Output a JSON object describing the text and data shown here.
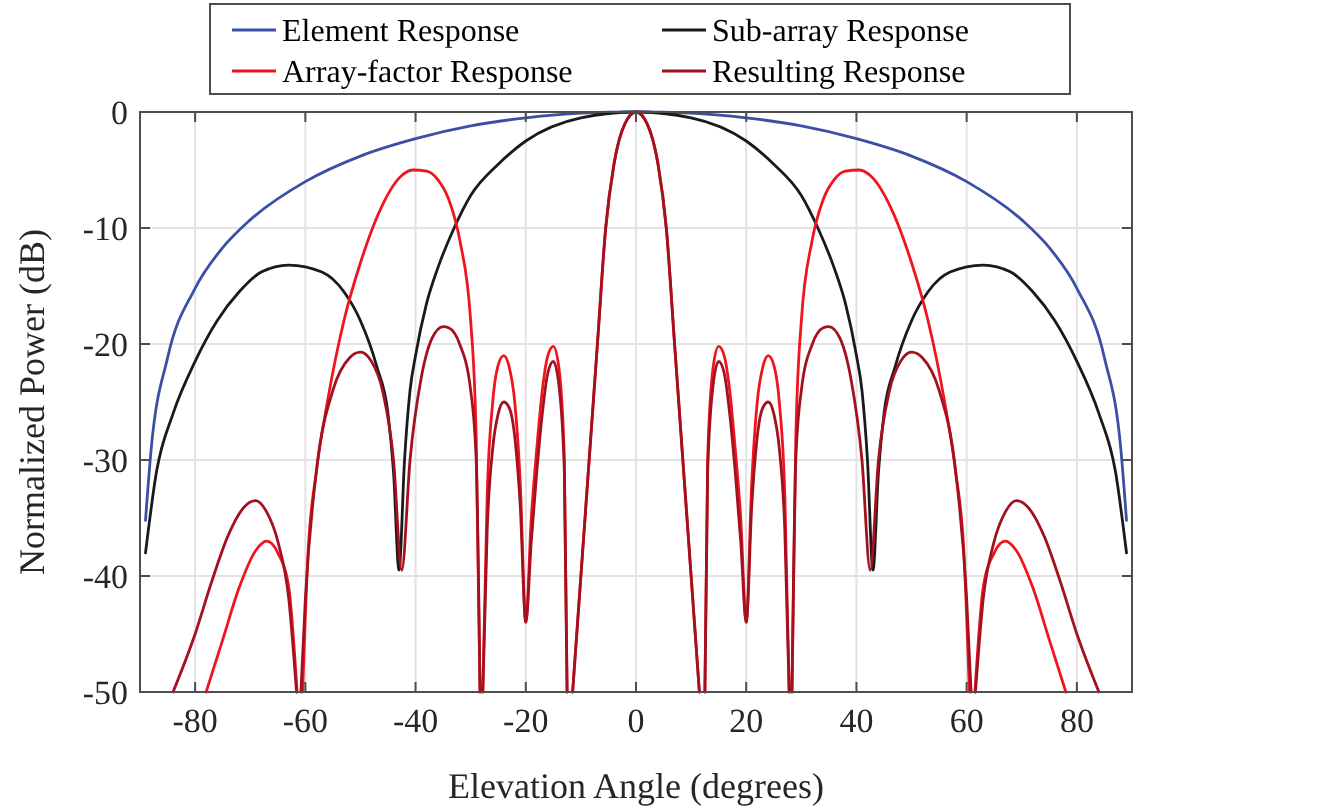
{
  "chart_data": {
    "type": "line",
    "xlabel": "Elevation Angle (degrees)",
    "ylabel": "Normalized Power (dB)",
    "xlim": [
      -90,
      90
    ],
    "xticks": [
      -80,
      -60,
      -40,
      -20,
      0,
      20,
      40,
      60,
      80
    ],
    "ylim": [
      -50,
      0
    ],
    "yticks": [
      -50,
      -40,
      -30,
      -20,
      -10,
      0
    ],
    "grid": true,
    "legend": "top",
    "line_style": "solid",
    "marker": "none",
    "series": [
      {
        "name": "Element Response",
        "color": "#3a4fa5",
        "x": [
          -89,
          -88,
          -85,
          -80,
          -75,
          -70,
          -60,
          -50,
          -40,
          -30,
          -20,
          -10,
          0,
          10,
          20,
          30,
          40,
          50,
          60,
          70,
          75,
          80,
          85,
          88,
          89
        ],
        "values": [
          -35.2,
          -29.2,
          -21.2,
          -15.2,
          -11.7,
          -9.3,
          -6,
          -3.8,
          -2.3,
          -1.2,
          -0.5,
          -0.1,
          0,
          -0.1,
          -0.5,
          -1.2,
          -2.3,
          -3.8,
          -6,
          -9.3,
          -11.7,
          -15.2,
          -21.2,
          -29.2,
          -35.2
        ]
      },
      {
        "name": "Sub-array Response",
        "color": "#1a1a1a",
        "x": [
          -89,
          -87,
          -84,
          -80,
          -76,
          -72,
          -68,
          -63,
          -57,
          -53,
          -50,
          -47,
          -45,
          -44,
          -43,
          -42,
          -41,
          -40,
          -38,
          -36,
          -33,
          -30,
          -25,
          -20,
          -10,
          0,
          10,
          20,
          25,
          30,
          33,
          36,
          38,
          40,
          41,
          42,
          43,
          44,
          45,
          47,
          50,
          53,
          57,
          63,
          68,
          72,
          76,
          80,
          84,
          87,
          89
        ],
        "values": [
          -38,
          -31,
          -26,
          -21.5,
          -18,
          -15.5,
          -13.8,
          -13.2,
          -13.8,
          -15.5,
          -18,
          -22,
          -26,
          -31,
          -39.5,
          -30,
          -24,
          -21,
          -16.5,
          -13.5,
          -10,
          -7.2,
          -4.5,
          -2.5,
          -0.5,
          0,
          -0.5,
          -2.5,
          -4.5,
          -7.2,
          -10,
          -13.5,
          -16.5,
          -21,
          -24,
          -30,
          -39.5,
          -31,
          -26,
          -22,
          -18,
          -15.5,
          -13.8,
          -13.2,
          -13.8,
          -15.5,
          -18,
          -21.5,
          -26,
          -31,
          -38
        ]
      },
      {
        "name": "Array-factor Response",
        "color": "#f0141e",
        "x": [
          -78,
          -75,
          -72,
          -69,
          -67,
          -65,
          -63,
          -61.5,
          -61,
          -60.5,
          -59.5,
          -58,
          -56,
          -53,
          -50,
          -46,
          -43,
          -40.5,
          -38,
          -36,
          -34,
          -32,
          -30,
          -29,
          -28.3,
          -28,
          -27.8,
          -27,
          -26,
          -25,
          -24,
          -23,
          -22,
          -21,
          -20,
          -19,
          -18,
          -17,
          -16,
          -15,
          -14,
          -13,
          -12.5,
          -12,
          -11.5,
          -10,
          -8.5,
          -7,
          -5.5,
          -4,
          -2,
          0,
          2,
          4,
          5.5,
          7,
          8.5,
          10,
          11.5,
          12,
          12.5,
          13,
          14,
          15,
          16,
          17,
          18,
          19,
          20,
          21,
          22,
          23,
          24,
          25,
          26,
          27,
          27.8,
          28,
          28.3,
          29,
          30,
          32,
          34,
          36,
          38,
          40.5,
          43,
          46,
          50,
          53,
          56,
          58,
          59.5,
          60.5,
          61,
          61.5,
          63,
          65,
          67,
          69,
          72,
          75,
          78
        ],
        "values": [
          -50,
          -45.5,
          -41,
          -37.8,
          -37,
          -38,
          -41,
          -50,
          null,
          -50,
          -38,
          -31,
          -25,
          -18,
          -13,
          -8,
          -5.7,
          -5,
          -5.1,
          -5.8,
          -7.5,
          -11,
          -18,
          -28,
          -50,
          null,
          -50,
          -33,
          -25,
          -21.8,
          -21,
          -22,
          -25,
          -32,
          -44,
          -35,
          -29,
          -24,
          -21,
          -20.2,
          -22,
          -30,
          -50,
          null,
          -50,
          -40,
          -30,
          -20,
          -10,
          -4.5,
          -1,
          0,
          -1,
          -4.5,
          -10,
          -20,
          -30,
          -40,
          -50,
          null,
          -50,
          -30,
          -22,
          -20.2,
          -21,
          -24,
          -29,
          -35,
          -44,
          -32,
          -25,
          -22,
          -21,
          -21.8,
          -25,
          -33,
          -50,
          null,
          -50,
          -28,
          -18,
          -11,
          -7.5,
          -5.8,
          -5.1,
          -5,
          -5.7,
          -8,
          -13,
          -18,
          -25,
          -31,
          -38,
          -50,
          null,
          -50,
          -41,
          -38,
          -37,
          -37.8,
          -41,
          -45.5,
          -50
        ]
      },
      {
        "name": "Resulting Response",
        "color": "#a3111f",
        "x": [
          -84,
          -80,
          -77,
          -74,
          -71,
          -69,
          -67,
          -65,
          -63,
          -61.6,
          -61.2,
          -60.8,
          -60,
          -58,
          -55,
          -52,
          -50,
          -48,
          -46,
          -44,
          -42.5,
          -41,
          -39,
          -37,
          -35,
          -34,
          -32,
          -30,
          -29,
          -28.3,
          -28,
          -27.8,
          -27,
          -26,
          -25,
          -24,
          -23,
          -22,
          -21,
          -20,
          -19,
          -18,
          -17,
          -16,
          -15,
          -14,
          -13,
          -12.5,
          -12,
          -11.5,
          -10,
          -8.5,
          -7,
          -5.5,
          -4,
          -2,
          0,
          2,
          4,
          5.5,
          7,
          8.5,
          10,
          11.5,
          12,
          12.5,
          13,
          14,
          15,
          16,
          17,
          18,
          19,
          20,
          21,
          22,
          23,
          24,
          25,
          26,
          27,
          27.8,
          28,
          28.3,
          29,
          30,
          32,
          34,
          35,
          37,
          39,
          41,
          42.5,
          44,
          46,
          48,
          50,
          52,
          55,
          58,
          60,
          60.8,
          61.2,
          61.6,
          63,
          65,
          67,
          69,
          71,
          74,
          77,
          80,
          84
        ],
        "values": [
          -50,
          -45,
          -40.5,
          -36.5,
          -34,
          -33.5,
          -34.5,
          -37,
          -42,
          -50,
          null,
          -50,
          -42,
          -31,
          -24,
          -21.2,
          -20.7,
          -21.5,
          -24,
          -30,
          -39.5,
          -30,
          -23,
          -19.5,
          -18.5,
          -18.6,
          -20,
          -24,
          -30,
          -50,
          null,
          -50,
          -36,
          -29,
          -26,
          -25,
          -25.5,
          -28,
          -34,
          -44,
          -37,
          -31,
          -26,
          -22.5,
          -21.5,
          -23.5,
          -31,
          -50,
          null,
          -50,
          -40,
          -30,
          -20,
          -10,
          -4.5,
          -1,
          0,
          -1,
          -4.5,
          -10,
          -20,
          -30,
          -40,
          -50,
          null,
          -50,
          -31,
          -23.5,
          -21.5,
          -22.5,
          -26,
          -31,
          -37,
          -44,
          -34,
          -28,
          -25.5,
          -25,
          -26,
          -29,
          -36,
          -50,
          null,
          -50,
          -30,
          -24,
          -20,
          -18.6,
          -18.5,
          -19.5,
          -23,
          -30,
          -39.5,
          -30,
          -24,
          -21.5,
          -20.7,
          -21.2,
          -24,
          -31,
          -42,
          -50,
          null,
          -50,
          -42,
          -37,
          -34.5,
          -33.5,
          -34,
          -36.5,
          -40.5,
          -45,
          -50
        ]
      }
    ]
  }
}
